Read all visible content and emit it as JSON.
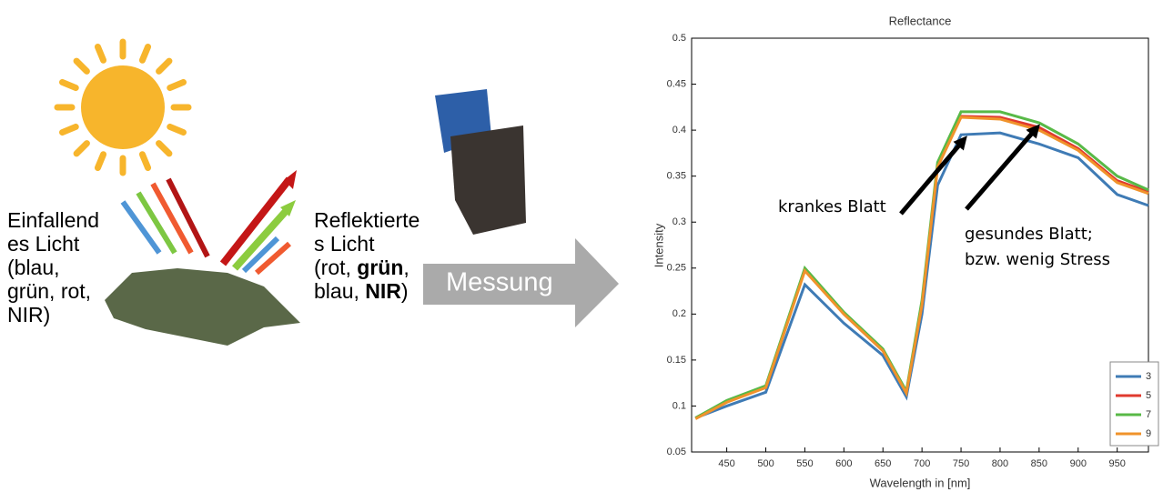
{
  "diagram": {
    "incident": [
      "Einfallend",
      "es Licht",
      "(blau,",
      "grün, rot,",
      "NIR)"
    ],
    "reflected": {
      "lines": [
        "Reflektierte",
        "s Licht"
      ],
      "line3": {
        "text": "(rot, ",
        "bold": "grün",
        "end": ","
      },
      "line4": {
        "text": "blau, ",
        "bold": "NIR",
        "end": ")"
      }
    },
    "measure": "Messung"
  },
  "chart_data": {
    "type": "line",
    "title": "Reflectance",
    "x_label": "Wavelength in [nm]",
    "y_label": "Intensity",
    "x": [
      410,
      450,
      500,
      550,
      600,
      650,
      680,
      700,
      720,
      750,
      800,
      850,
      900,
      950,
      990
    ],
    "series": [
      {
        "name": "3",
        "color": "#3f7bb5",
        "values": [
          0.087,
          0.1,
          0.115,
          0.232,
          0.19,
          0.155,
          0.11,
          0.2,
          0.34,
          0.395,
          0.397,
          0.385,
          0.37,
          0.33,
          0.318
        ]
      },
      {
        "name": "5",
        "color": "#e03a2e",
        "values": [
          0.087,
          0.105,
          0.12,
          0.248,
          0.2,
          0.16,
          0.115,
          0.21,
          0.36,
          0.415,
          0.414,
          0.403,
          0.38,
          0.345,
          0.333
        ]
      },
      {
        "name": "7",
        "color": "#58b947",
        "values": [
          0.087,
          0.106,
          0.122,
          0.25,
          0.202,
          0.162,
          0.116,
          0.215,
          0.365,
          0.42,
          0.42,
          0.408,
          0.385,
          0.35,
          0.335
        ]
      },
      {
        "name": "9",
        "color": "#f0932b",
        "values": [
          0.086,
          0.104,
          0.12,
          0.247,
          0.2,
          0.16,
          0.114,
          0.21,
          0.36,
          0.414,
          0.412,
          0.4,
          0.378,
          0.343,
          0.331
        ]
      }
    ],
    "xlim": [
      405,
      990
    ],
    "ylim": [
      0.05,
      0.5
    ],
    "xticks": [
      450,
      500,
      550,
      600,
      650,
      700,
      750,
      800,
      850,
      900,
      950
    ],
    "yticks": [
      0.05,
      0.1,
      0.15,
      0.2,
      0.25,
      0.3,
      0.35,
      0.4,
      0.45,
      0.5
    ],
    "legend": "lower right",
    "annotations": [
      {
        "text": [
          "krankes Blatt"
        ]
      },
      {
        "text": [
          "gesundes Blatt;",
          "bzw. wenig Stress"
        ]
      }
    ]
  }
}
